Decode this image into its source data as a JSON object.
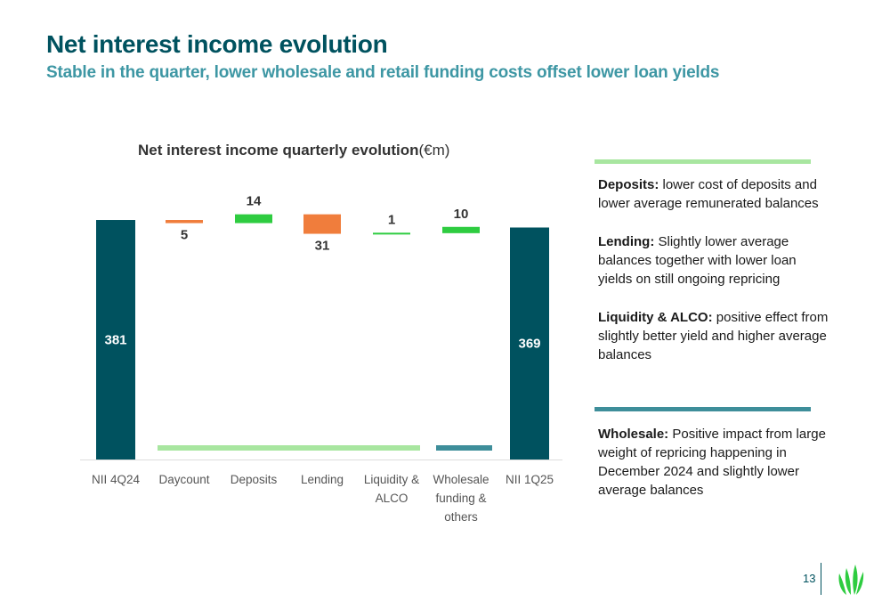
{
  "header": {
    "title": "Net interest income evolution",
    "subtitle": "Stable in the quarter, lower wholesale and retail funding costs offset lower loan yields"
  },
  "chart_data": {
    "type": "bar",
    "variant": "waterfall",
    "title_bold": "Net interest income quarterly evolution",
    "title_unit": "(€m)",
    "categories": [
      "NII 4Q24",
      "Daycount",
      "Deposits",
      "Lending",
      "Liquidity & ALCO",
      "Wholesale funding & others",
      "NII 1Q25"
    ],
    "category_lines": [
      [
        "NII 4Q24"
      ],
      [
        "Daycount"
      ],
      [
        "Deposits"
      ],
      [
        "Lending"
      ],
      [
        "Liquidity &",
        "ALCO"
      ],
      [
        "Wholesale",
        "funding &",
        "others"
      ],
      [
        "NII 1Q25"
      ]
    ],
    "steps": [
      {
        "kind": "total",
        "value": 381,
        "label": "381"
      },
      {
        "kind": "delta",
        "value": -5,
        "label": "5"
      },
      {
        "kind": "delta",
        "value": 14,
        "label": "14"
      },
      {
        "kind": "delta",
        "value": -31,
        "label": "31"
      },
      {
        "kind": "delta",
        "value": 1,
        "label": "1"
      },
      {
        "kind": "delta",
        "value": 10,
        "label": "10"
      },
      {
        "kind": "total",
        "value": 369,
        "label": "369"
      }
    ],
    "colors": {
      "total": "#00525f",
      "increase": "#2ecc40",
      "decrease": "#f07d3c",
      "group_retail": "#a8e6a0",
      "group_wholesale": "#3e8e9a"
    }
  },
  "notes": {
    "deposits_head": "Deposits:",
    "deposits_text": " lower cost of deposits and lower average remunerated balances",
    "lending_head": "Lending:",
    "lending_text": " Slightly lower average balances together with lower loan yields on still ongoing repricing",
    "liquidity_head": "Liquidity & ALCO:",
    "liquidity_text": " positive effect from slightly better yield and higher average balances",
    "wholesale_head": "Wholesale:",
    "wholesale_text": " Positive impact from large weight of repricing happening in December 2024 and slightly lower average balances"
  },
  "footer": {
    "page_number": "13",
    "logo_icon": "leaf-logo-icon"
  }
}
